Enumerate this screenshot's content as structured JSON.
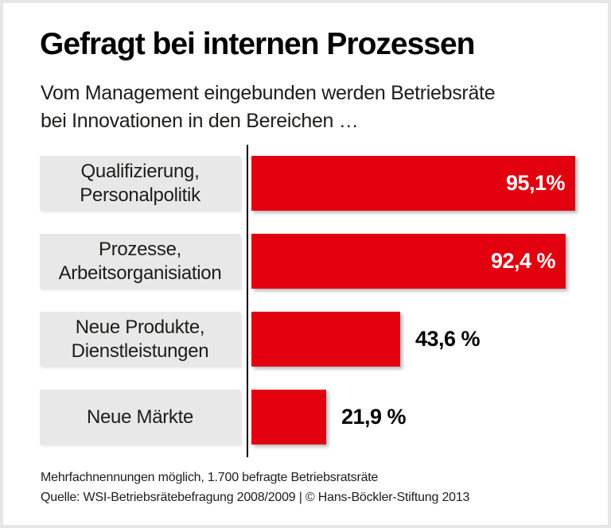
{
  "frame": {
    "background": "#ffffff",
    "border_color": "#e6e6e4"
  },
  "header": {
    "title": "Gefragt bei internen Prozessen",
    "subtitle_lines": [
      "Vom Management eingebunden werden Betriebsräte",
      "bei Innovationen in den Bereichen …"
    ]
  },
  "chart_data": {
    "type": "bar",
    "orientation": "horizontal",
    "title": "Gefragt bei internen Prozessen",
    "subtitle": "Vom Management eingebunden werden Betriebsräte bei Innovationen in den Bereichen …",
    "categories": [
      "Qualifizierung, Personalpolitik",
      "Prozesse, Arbeitsorganisiation",
      "Neue Produkte, Dienstleistungen",
      "Neue Märkte"
    ],
    "category_label_lines": [
      [
        "Qualifizierung,",
        "Personalpolitik"
      ],
      [
        "Prozesse,",
        "Arbeitsorganisiation"
      ],
      [
        "Neue Produkte,",
        "Dienstleistungen"
      ],
      [
        "Neue Märkte"
      ]
    ],
    "values": [
      95.1,
      92.4,
      43.6,
      21.9
    ],
    "value_labels": [
      "95,1%",
      "92,4 %",
      "43,6 %",
      "21,9 %"
    ],
    "value_label_placement": [
      "inside",
      "inside",
      "outside",
      "outside"
    ],
    "xlim": [
      0,
      100
    ],
    "grid": false,
    "legend": false,
    "colors": {
      "bar": "#e2000f",
      "category_box": "#e8e8e8",
      "axis_line": "#000000",
      "value_inside": "#ffffff",
      "value_outside": "#000000"
    }
  },
  "footer": {
    "note": "Mehrfachnennungen möglich, 1.700 befragte Betriebsratsräte",
    "source": "Quelle: WSI-Betriebsrätebefragung 2008/2009 | © Hans-Böckler-Stiftung 2013"
  }
}
